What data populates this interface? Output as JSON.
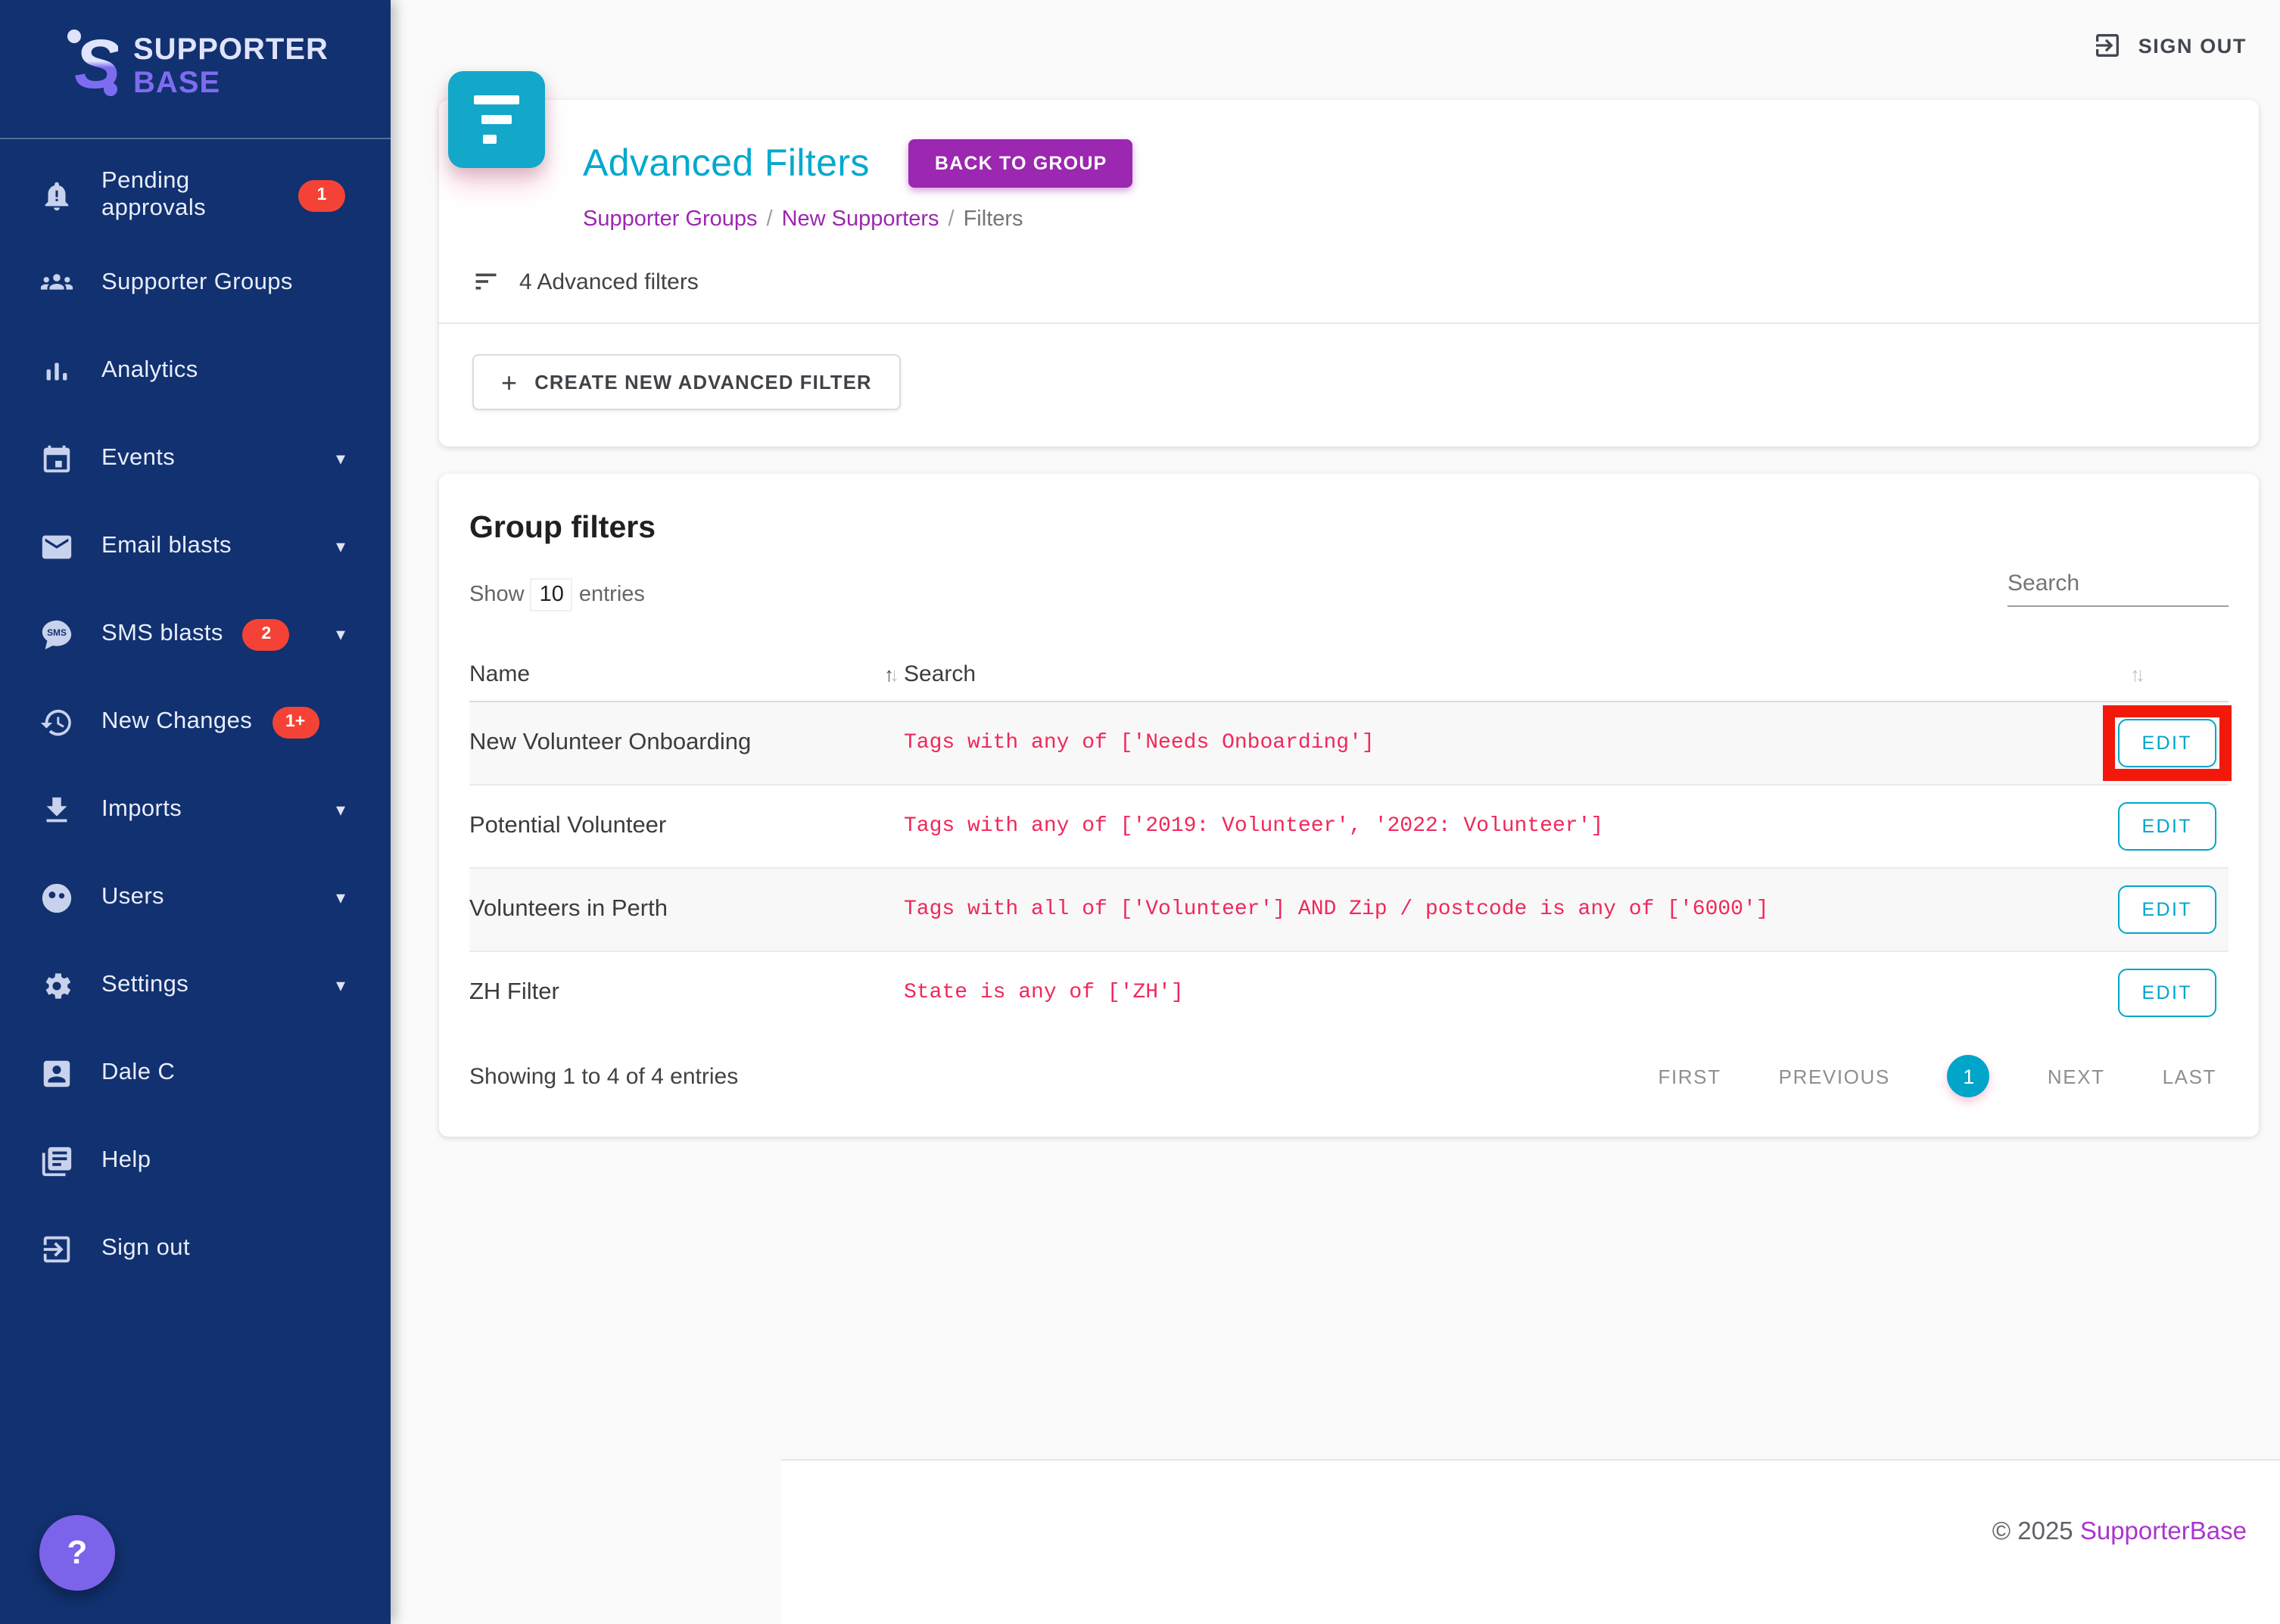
{
  "brand": {
    "line1": "SUPPORTER",
    "line2": "BASE"
  },
  "topbar": {
    "sign_out": "SIGN OUT"
  },
  "sidebar": {
    "items": [
      {
        "icon": "bell-icon",
        "label": "Pending approvals",
        "badge": "1",
        "chevron": false
      },
      {
        "icon": "groups-icon",
        "label": "Supporter Groups",
        "badge": null,
        "chevron": false
      },
      {
        "icon": "analytics-icon",
        "label": "Analytics",
        "badge": null,
        "chevron": false
      },
      {
        "icon": "calendar-icon",
        "label": "Events",
        "badge": null,
        "chevron": true
      },
      {
        "icon": "mail-icon",
        "label": "Email blasts",
        "badge": null,
        "chevron": true
      },
      {
        "icon": "sms-icon",
        "label": "SMS blasts",
        "badge": "2",
        "chevron": true
      },
      {
        "icon": "history-icon",
        "label": "New Changes",
        "badge": "1+",
        "chevron": false
      },
      {
        "icon": "download-icon",
        "label": "Imports",
        "badge": null,
        "chevron": true
      },
      {
        "icon": "users-icon",
        "label": "Users",
        "badge": null,
        "chevron": true
      },
      {
        "icon": "gear-icon",
        "label": "Settings",
        "badge": null,
        "chevron": true
      },
      {
        "icon": "account-icon",
        "label": "Dale C",
        "badge": null,
        "chevron": false
      },
      {
        "icon": "help-icon",
        "label": "Help",
        "badge": null,
        "chevron": false
      },
      {
        "icon": "signout-icon",
        "label": "Sign out",
        "badge": null,
        "chevron": false
      }
    ],
    "help_fab": "?"
  },
  "header": {
    "title": "Advanced Filters",
    "back_button": "BACK TO GROUP",
    "breadcrumb": [
      {
        "label": "Supporter Groups",
        "link": true
      },
      {
        "label": "New Supporters",
        "link": true
      },
      {
        "label": "Filters",
        "link": false
      }
    ],
    "breadcrumb_separator": "/",
    "filters_count": "4 Advanced filters",
    "create_button": "CREATE NEW ADVANCED FILTER"
  },
  "table": {
    "section_title": "Group filters",
    "show_prefix": "Show",
    "show_value": "10",
    "show_suffix": "entries",
    "search_placeholder": "Search",
    "columns": {
      "name": "Name",
      "search": "Search"
    },
    "edit_label": "EDIT",
    "rows": [
      {
        "name": "New Volunteer Onboarding",
        "search": "Tags with any of ['Needs Onboarding']",
        "highlighted": true
      },
      {
        "name": "Potential Volunteer",
        "search": "Tags with any of ['2019: Volunteer', '2022: Volunteer']",
        "highlighted": false
      },
      {
        "name": "Volunteers in Perth",
        "search": "Tags with all of ['Volunteer'] AND Zip / postcode is any of ['6000']",
        "highlighted": false
      },
      {
        "name": "ZH Filter",
        "search": "State is any of ['ZH']",
        "highlighted": false
      }
    ],
    "summary": "Showing 1 to 4 of 4 entries",
    "pagination": [
      {
        "label": "FIRST",
        "active": false
      },
      {
        "label": "PREVIOUS",
        "active": false
      },
      {
        "label": "1",
        "active": true
      },
      {
        "label": "NEXT",
        "active": false
      },
      {
        "label": "LAST",
        "active": false
      }
    ]
  },
  "footer": {
    "copyright": "© 2025",
    "link": "SupporterBase"
  },
  "colors": {
    "sidebar_navy": "#113170",
    "accent_cyan": "#00a5c9",
    "accent_purple": "#9c27b0",
    "badge_red": "#f44336",
    "filter_text_red": "#f0285a",
    "annotation_red": "#f2190a",
    "help_fab_purple": "#7d63ea",
    "footer_link_purple": "#ab35cd"
  }
}
